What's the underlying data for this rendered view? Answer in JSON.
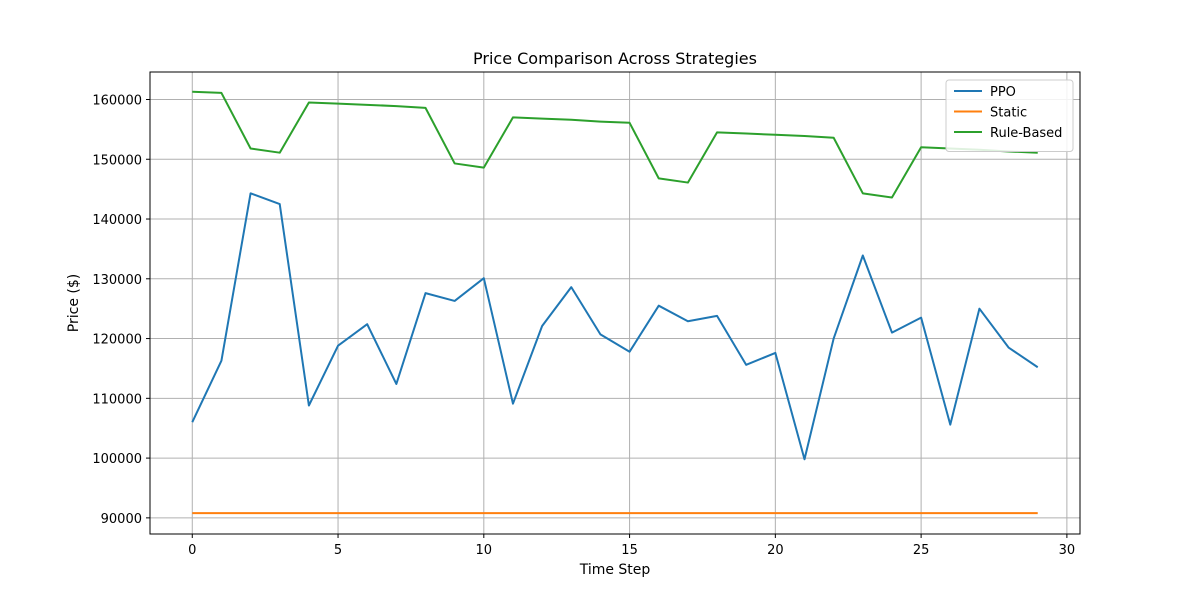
{
  "chart_data": {
    "type": "line",
    "title": "Price Comparison Across Strategies",
    "xlabel": "Time Step",
    "ylabel": "Price ($)",
    "xlim": [
      -1.45,
      30.45
    ],
    "ylim": [
      87300,
      164600
    ],
    "xticks": [
      0,
      5,
      10,
      15,
      20,
      25,
      30
    ],
    "xtick_labels": [
      "0",
      "5",
      "10",
      "15",
      "20",
      "25",
      "30"
    ],
    "yticks": [
      90000,
      100000,
      110000,
      120000,
      130000,
      140000,
      150000,
      160000
    ],
    "ytick_labels": [
      "90000",
      "100000",
      "110000",
      "120000",
      "130000",
      "140000",
      "150000",
      "160000"
    ],
    "grid": true,
    "legend_position": "top-right",
    "x": [
      0,
      1,
      2,
      3,
      4,
      5,
      6,
      7,
      8,
      9,
      10,
      11,
      12,
      13,
      14,
      15,
      16,
      17,
      18,
      19,
      20,
      21,
      22,
      23,
      24,
      25,
      26,
      27,
      28,
      29
    ],
    "series": [
      {
        "name": "PPO",
        "color": "#1f77b4",
        "values": [
          106000,
          116300,
          144300,
          142500,
          108800,
          118800,
          122400,
          112400,
          127600,
          126300,
          130100,
          109100,
          122100,
          128600,
          120700,
          117800,
          125500,
          122900,
          123800,
          115600,
          117600,
          99800,
          120000,
          133900,
          121000,
          123500,
          105600,
          125000,
          118500,
          115200
        ]
      },
      {
        "name": "Static",
        "color": "#ff7f0e",
        "values": [
          90800,
          90800,
          90800,
          90800,
          90800,
          90800,
          90800,
          90800,
          90800,
          90800,
          90800,
          90800,
          90800,
          90800,
          90800,
          90800,
          90800,
          90800,
          90800,
          90800,
          90800,
          90800,
          90800,
          90800,
          90800,
          90800,
          90800,
          90800,
          90800,
          90800
        ]
      },
      {
        "name": "Rule-Based",
        "color": "#2ca02c",
        "values": [
          161300,
          161100,
          151800,
          151100,
          159500,
          159300,
          159100,
          158900,
          158600,
          149300,
          148600,
          157000,
          156800,
          156600,
          156300,
          156100,
          146800,
          146100,
          154500,
          154300,
          154100,
          153900,
          153600,
          144300,
          143600,
          152000,
          151800,
          151600,
          151300,
          151100
        ]
      }
    ]
  }
}
